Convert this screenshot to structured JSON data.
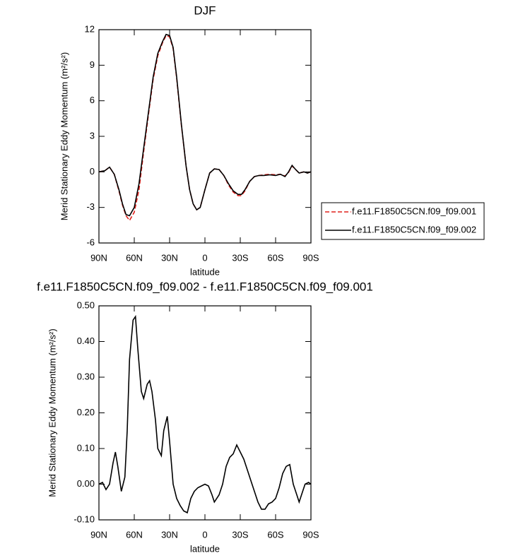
{
  "chart_data": [
    {
      "type": "line",
      "title": "DJF",
      "x_label": "latitude",
      "y_label": "Merid Stationary Eddy Momentum (m²/s²)",
      "x": [
        90,
        85,
        81,
        77,
        73,
        70,
        67,
        64,
        60,
        56,
        52,
        48,
        44,
        40,
        36,
        33,
        30,
        27,
        24,
        20,
        16,
        13,
        10,
        7,
        4,
        0,
        -4,
        -8,
        -12,
        -16,
        -20,
        -24,
        -28,
        -31,
        -34,
        -38,
        -42,
        -46,
        -50,
        -55,
        -60,
        -64,
        -68,
        -71,
        -74,
        -77,
        -80,
        -84,
        -87,
        -90
      ],
      "series": [
        {
          "name": "f.e11.F1850C5CN.f09_f09.001",
          "color": "#e0201b",
          "dash": true,
          "values": [
            0,
            0.1,
            0.4,
            -0.2,
            -1.6,
            -2.8,
            -3.7,
            -4.1,
            -3.4,
            -1.5,
            1.7,
            4.8,
            7.8,
            9.8,
            10.9,
            11.5,
            11.4,
            10.4,
            7.9,
            3.9,
            0.5,
            -1.5,
            -2.7,
            -3.2,
            -3.0,
            -1.5,
            -0.1,
            0.25,
            0.2,
            -0.3,
            -1.1,
            -1.7,
            -2.0,
            -2.0,
            -1.6,
            -0.8,
            -0.4,
            -0.3,
            -0.25,
            -0.2,
            -0.25,
            -0.2,
            -0.35,
            -0.05,
            0.5,
            0.2,
            -0.1,
            0,
            -0.1,
            0
          ]
        },
        {
          "name": "f.e11.F1850C5CN.f09_f09.002",
          "color": "#000000",
          "dash": false,
          "values": [
            0,
            0.1,
            0.4,
            -0.2,
            -1.5,
            -2.7,
            -3.6,
            -3.7,
            -3.0,
            -1.0,
            2.0,
            5.0,
            8.0,
            10.0,
            11.0,
            11.6,
            11.5,
            10.5,
            8.0,
            4.0,
            0.5,
            -1.5,
            -2.7,
            -3.2,
            -3.0,
            -1.5,
            -0.1,
            0.25,
            0.2,
            -0.3,
            -1.0,
            -1.6,
            -1.9,
            -1.9,
            -1.5,
            -0.8,
            -0.4,
            -0.3,
            -0.3,
            -0.25,
            -0.3,
            -0.2,
            -0.4,
            0,
            0.55,
            0.2,
            -0.1,
            0,
            -0.1,
            0
          ]
        }
      ],
      "xlim": [
        90,
        -90
      ],
      "xticks": [
        {
          "value": 90,
          "label": "90N"
        },
        {
          "value": 60,
          "label": "60N"
        },
        {
          "value": 30,
          "label": "30N"
        },
        0,
        {
          "value": -30,
          "label": "30S"
        },
        {
          "value": -60,
          "label": "60S"
        },
        {
          "value": -90,
          "label": "90S"
        }
      ],
      "ylim": [
        -6,
        12
      ],
      "yticks": [
        -6,
        -3,
        0,
        3,
        6,
        9,
        12
      ],
      "legend": "right"
    },
    {
      "type": "line",
      "title": "f.e11.F1850C5CN.f09_f09.002 - f.e11.F1850C5CN.f09_f09.001",
      "x_label": "latitude",
      "y_label": "Merid Stationary Eddy Momentum (m²/s²)",
      "x": [
        90,
        87,
        84,
        81,
        78,
        76,
        74,
        71,
        68,
        66,
        64,
        61,
        59,
        57,
        54,
        52,
        49,
        47,
        45,
        42,
        40,
        37,
        35,
        32,
        30,
        27,
        24,
        21,
        18,
        15,
        12,
        9,
        6,
        3,
        0,
        -3,
        -6,
        -8,
        -12,
        -15,
        -18,
        -21,
        -24,
        -27,
        -30,
        -33,
        -36,
        -39,
        -42,
        -45,
        -48,
        -51,
        -54,
        -57,
        -60,
        -63,
        -66,
        -69,
        -72,
        -75,
        -78,
        -80,
        -83,
        -85,
        -88,
        -90
      ],
      "values": [
        0,
        0.005,
        -0.015,
        0,
        0.06,
        0.09,
        0.05,
        -0.02,
        0.02,
        0.15,
        0.35,
        0.46,
        0.47,
        0.38,
        0.26,
        0.24,
        0.28,
        0.29,
        0.26,
        0.18,
        0.1,
        0.08,
        0.15,
        0.19,
        0.12,
        0,
        -0.04,
        -0.06,
        -0.075,
        -0.08,
        -0.04,
        -0.02,
        -0.01,
        -0.005,
        0,
        -0.005,
        -0.03,
        -0.05,
        -0.03,
        0,
        0.05,
        0.075,
        0.085,
        0.11,
        0.09,
        0.07,
        0.04,
        0.01,
        -0.02,
        -0.05,
        -0.07,
        -0.07,
        -0.055,
        -0.05,
        -0.04,
        -0.01,
        0.03,
        0.05,
        0.055,
        0,
        -0.03,
        -0.05,
        -0.02,
        0,
        0.005,
        0
      ],
      "color": "#000000",
      "xlim": [
        90,
        -90
      ],
      "xticks": [
        {
          "value": 90,
          "label": "90N"
        },
        {
          "value": 60,
          "label": "60N"
        },
        {
          "value": 30,
          "label": "30N"
        },
        0,
        {
          "value": -30,
          "label": "30S"
        },
        {
          "value": -60,
          "label": "60S"
        },
        {
          "value": -90,
          "label": "90S"
        }
      ],
      "ylim": [
        -0.1,
        0.5
      ],
      "yticks": [
        {
          "value": -0.1,
          "label": "-0.10"
        },
        {
          "value": 0,
          "label": "0.00"
        },
        {
          "value": 0.1,
          "label": "0.10"
        },
        {
          "value": 0.2,
          "label": "0.20"
        },
        {
          "value": 0.3,
          "label": "0.30"
        },
        {
          "value": 0.4,
          "label": "0.40"
        },
        {
          "value": 0.5,
          "label": "0.50"
        }
      ]
    }
  ]
}
